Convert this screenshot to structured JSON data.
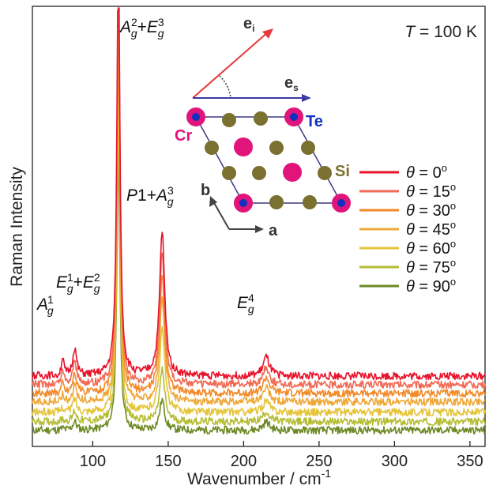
{
  "chart_data": {
    "type": "line",
    "title": "",
    "xlabel": "Wavenumber / cm",
    "xlabel_superscript": "-1",
    "ylabel": "Raman Intensity",
    "xlim": [
      60,
      360
    ],
    "xticks": [
      "100",
      "150",
      "200",
      "250",
      "300",
      "350"
    ],
    "y_ticks_shown": false,
    "grid": false,
    "temperature_label": {
      "italic": "T",
      "rest": " = 100 K"
    },
    "legend_position": "right",
    "peaks": [
      {
        "name": "A_g^1",
        "base": "A",
        "sub": "g",
        "sup": "1",
        "x": 80
      },
      {
        "name": "E_g^1+E_g^2",
        "x": 88
      },
      {
        "name": "A_g^2+E_g^3",
        "x": 117
      },
      {
        "name": "P1+A_g^3",
        "x": 146
      },
      {
        "name": "E_g^4",
        "x": 215
      }
    ],
    "series": [
      {
        "name": "θ = 0°",
        "theta": "0",
        "color": "#e8142c",
        "baseline": 0.78,
        "peak_amplitudes": [
          0.2,
          0.32,
          5.0,
          1.68,
          0.22
        ]
      },
      {
        "name": "θ = 15°",
        "theta": "15",
        "color": "#f26a55",
        "baseline": 0.68,
        "peak_amplitudes": [
          0.17,
          0.28,
          4.7,
          1.52,
          0.2
        ]
      },
      {
        "name": "θ = 30°",
        "theta": "30",
        "color": "#f28a2a",
        "baseline": 0.58,
        "peak_amplitudes": [
          0.12,
          0.24,
          4.4,
          1.36,
          0.18
        ]
      },
      {
        "name": "θ = 45°",
        "theta": "45",
        "color": "#efa838",
        "baseline": 0.48,
        "peak_amplitudes": [
          0.08,
          0.2,
          4.1,
          1.2,
          0.16
        ]
      },
      {
        "name": "θ = 60°",
        "theta": "60",
        "color": "#e6c43a",
        "baseline": 0.36,
        "peak_amplitudes": [
          0.05,
          0.16,
          3.8,
          1.0,
          0.14
        ]
      },
      {
        "name": "θ = 75°",
        "theta": "75",
        "color": "#b5bd33",
        "baseline": 0.25,
        "peak_amplitudes": [
          0.03,
          0.12,
          3.5,
          0.6,
          0.12
        ]
      },
      {
        "name": "θ = 90°",
        "theta": "90",
        "color": "#6e8a25",
        "baseline": 0.15,
        "peak_amplitudes": [
          0.02,
          0.1,
          3.2,
          0.35,
          0.1
        ]
      }
    ]
  },
  "inset": {
    "e_incident": "e",
    "e_incident_sub": "i",
    "e_scattered": "e",
    "e_scattered_sub": "s",
    "atom_cr": "Cr",
    "atom_te": "Te",
    "atom_si": "Si",
    "axis_a": "a",
    "axis_b": "b"
  },
  "colors": {
    "e_incident": "#e83a3a",
    "e_scattered": "#3a3aa0",
    "cr": "#e0147a",
    "te": "#1030c0",
    "si": "#7a7030"
  }
}
